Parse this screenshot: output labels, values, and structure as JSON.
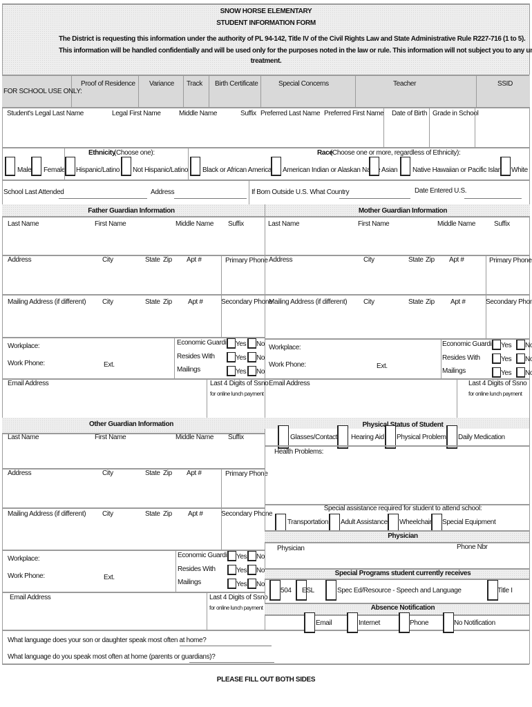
{
  "header": {
    "school": "SNOW HORSE ELEMENTARY",
    "form_title": "STUDENT INFORMATION FORM",
    "notice_1": "The District is requesting this information under the authority of PL 94-142, Title IV of the Civil Rights Law and State Administrative Rule R227-716 (1 to 5).",
    "notice_2": "This information will be handled confidentially and will be used only for the purposes noted in the law or rule.  This information will not subject you to any unfair or discriminatory",
    "notice_3": "treatment."
  },
  "school_use": {
    "label": "FOR SCHOOL USE ONLY:",
    "columns": [
      "Proof of Residence",
      "Variance",
      "Track",
      "Birth Certificate",
      "Special Concerns",
      "Teacher",
      "SSID"
    ]
  },
  "student": {
    "fields": [
      "Student's  Legal  Last Name",
      "Legal First Name",
      "Middle Name",
      "Suffix",
      "Preferred Last Name",
      "Preferred First Name",
      "Date of Birth",
      "Grade in School"
    ]
  },
  "gender": {
    "options": [
      "Male",
      "Female"
    ]
  },
  "ethnicity": {
    "title": "Ethnicity",
    "hint": " (Choose one):",
    "options": [
      "Hispanic/Latino",
      "Not Hispanic/Latino"
    ]
  },
  "race": {
    "title": "Race",
    "hint": " (Choose one or more, regardless of Ethnicity):",
    "options": [
      "Black or African American",
      "American Indian or Alaskan Native",
      "Asian",
      "Native Hawaiian or Pacific Islander",
      "White"
    ]
  },
  "school_history": {
    "last_attended": "School Last Attended",
    "address": "Address",
    "born_outside": "If Born Outside U.S.  What Country",
    "date_entered": "Date Entered U.S."
  },
  "sections": {
    "father": "Father Guardian Information",
    "mother": "Mother Guardian Information",
    "other": "Other Guardian Information"
  },
  "guardian_labels": {
    "last_name": "Last Name",
    "first_name": "First Name",
    "middle_name": "Middle Name",
    "suffix": "Suffix",
    "address": "Address",
    "city": "City",
    "state": "State",
    "zip": "Zip",
    "apt": "Apt #",
    "primary_phone": "Primary Phone",
    "mailing_address": "Mailing Address (if different)",
    "secondary_phone": "Secondary Phone",
    "workplace": "Workplace:",
    "work_phone": "Work Phone:",
    "ext": "Ext.",
    "economic_guardian": "Economic Guardian",
    "resides_with": "Resides With",
    "mailings": "Mailings",
    "yes": "Yes",
    "no": "No",
    "email": "Email Address",
    "ssn": "Last 4 Digits of Ssno",
    "ssn_note": "for online lunch payment"
  },
  "physical": {
    "title": "Physical Status of Student",
    "options": [
      "Glasses/Contacts",
      "Hearing Aid",
      "Physical Problems",
      "Daily Medication"
    ],
    "health_problems": "Health Problems:"
  },
  "assistance": {
    "title": "Special assistance required for student to attend school:",
    "options": [
      "Transportation",
      "Adult Assistance",
      "Wheelchair",
      "Special Equipment"
    ]
  },
  "physician": {
    "title": "Physician",
    "name_label": "Physician",
    "phone_label": "Phone Nbr"
  },
  "programs": {
    "title": "Special Programs student currently receives",
    "options": [
      "504",
      "ESL",
      "Spec Ed/Resource - Speech and Language",
      "Title I"
    ]
  },
  "absence": {
    "title": "Absence Notification",
    "options": [
      "Email",
      "Internet",
      "Phone",
      "No Notification"
    ]
  },
  "language": {
    "q1": "What language does your son or daughter speak most often at home?",
    "q2": "What language do you speak most often at home (parents or guardians)?"
  },
  "footer": "PLEASE FILL OUT BOTH SIDES"
}
